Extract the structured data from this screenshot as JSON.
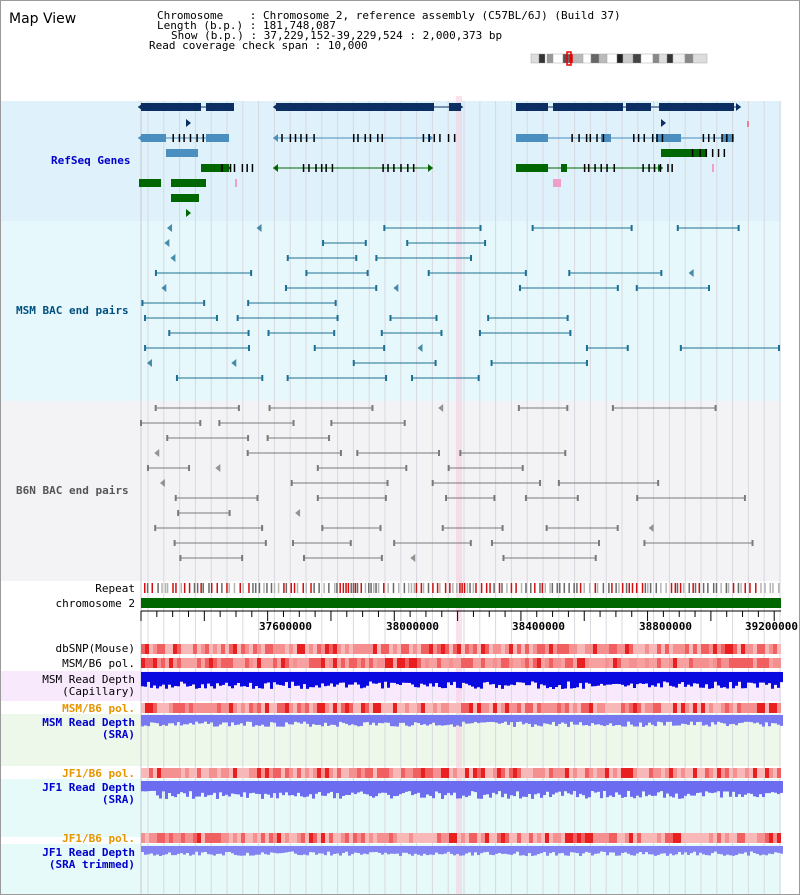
{
  "title": "Map View",
  "info": {
    "chromosome_label": "Chromosome",
    "chromosome_value": "Chromosome 2, reference assembly (C57BL/6J) (Build 37)",
    "length_label": "Length (b.p.)",
    "length_value": "181,748,087",
    "show_label": "Show (b.p.)",
    "show_value": "37,229,152-39,229,524 : 2,000,373 bp",
    "coverage_label": "Read coverage check span",
    "coverage_value": "10,000"
  },
  "tracks": {
    "refseq": "RefSeq Genes",
    "msm_bac": "MSM BAC end pairs",
    "b6n_bac": "B6N BAC end pairs",
    "repeat": "Repeat",
    "chromosome": "chromosome 2",
    "dbsnp": "dbSNP(Mouse)",
    "msm_pol1": "MSM/B6 pol.",
    "msm_depth_cap_1": "MSM Read Depth",
    "msm_depth_cap_2": "(Capillary)",
    "msm_pol2": "MSM/B6 pol.",
    "msm_depth_sra_1": "MSM Read Depth",
    "msm_depth_sra_2": "(SRA)",
    "jf1_pol1": "JF1/B6 pol.",
    "jf1_depth_sra_1": "JF1 Read Depth",
    "jf1_depth_sra_2": "(SRA)",
    "jf1_pol2": "JF1/B6 pol.",
    "jf1_depth_trim_1": "JF1 Read Depth",
    "jf1_depth_trim_2": "(SRA trimmed)"
  },
  "axis": {
    "ticks": [
      "37600000",
      "38000000",
      "38400000",
      "38800000",
      "39200000"
    ]
  },
  "colors": {
    "refseq_bg": "#dff2fb",
    "msm_bg": "#e6f8fb",
    "b6n_bg": "#f3f3f6",
    "chromosome": "#006600",
    "gene_navy": "#0c2f63",
    "gene_steel": "#4a8fbf",
    "gene_green": "#006600",
    "highlight": "#f5b8c8"
  }
}
